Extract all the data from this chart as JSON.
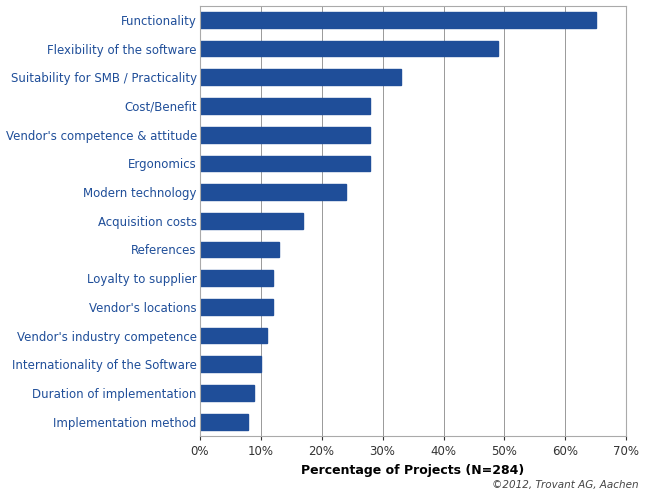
{
  "categories": [
    "Implementation method",
    "Duration of implementation",
    "Internationality of the Software",
    "Vendor's industry competence",
    "Vendor's locations",
    "Loyalty to supplier",
    "References",
    "Acquisition costs",
    "Modern technology",
    "Ergonomics",
    "Vendor's competence & attitude",
    "Cost/Benefit",
    "Suitability for SMB / Practicality",
    "Flexibility of the software",
    "Functionality"
  ],
  "values": [
    8,
    9,
    10,
    11,
    12,
    12,
    13,
    17,
    24,
    28,
    28,
    28,
    33,
    49,
    65
  ],
  "bar_color": "#1f4e99",
  "xlabel": "Percentage of Projects (N=284)",
  "xlim": [
    0,
    70
  ],
  "xticks": [
    0,
    10,
    20,
    30,
    40,
    50,
    60,
    70
  ],
  "background_color": "#ffffff",
  "grid_color": "#999999",
  "annotation": "©2012, Trovant AG, Aachen",
  "label_fontsize": 8.5,
  "tick_fontsize": 8.5,
  "xlabel_fontsize": 9,
  "bar_height": 0.55
}
